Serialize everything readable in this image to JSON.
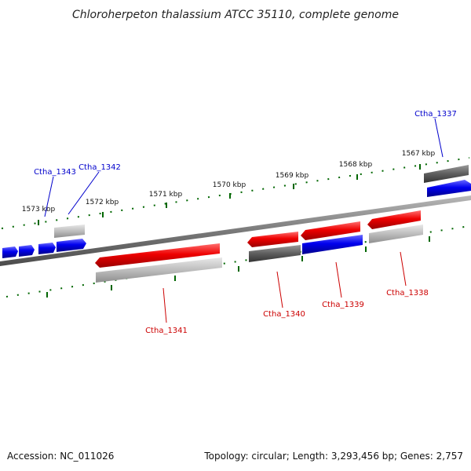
{
  "title": "Chloroherpeton thalassium ATCC 35110, complete genome",
  "footer": {
    "accession": "Accession: NC_011026",
    "topology": "Topology: circular; Length: 3,293,456 bp; Genes: 2,757"
  },
  "colors": {
    "forward_gene": "#0000ee",
    "reverse_gene": "#ee0000",
    "forward_label": "#0000cc",
    "reverse_label": "#cc0000",
    "tick": "#006600",
    "backbone": "#808080"
  },
  "ticks": [
    "1573 kbp",
    "1572 kbp",
    "1571 kbp",
    "1570 kbp",
    "1569 kbp",
    "1568 kbp",
    "1567 kbp"
  ],
  "genes": [
    {
      "label": "Ctha_1343",
      "strand": "forward"
    },
    {
      "label": "Ctha_1342",
      "strand": "forward"
    },
    {
      "label": "Ctha_1341",
      "strand": "reverse"
    },
    {
      "label": "Ctha_1340",
      "strand": "reverse"
    },
    {
      "label": "Ctha_1339",
      "strand": "reverse"
    },
    {
      "label": "Ctha_1338",
      "strand": "reverse"
    },
    {
      "label": "Ctha_1337",
      "strand": "forward"
    }
  ]
}
